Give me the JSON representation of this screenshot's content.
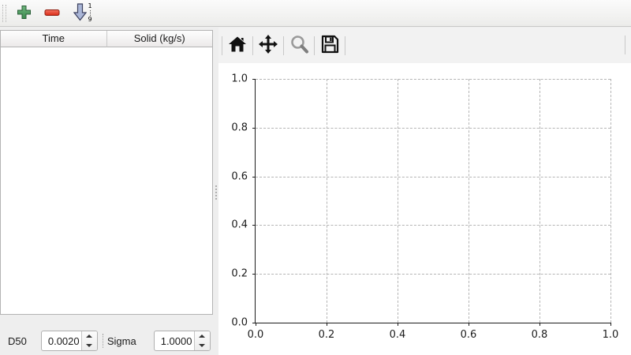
{
  "toolbar": {
    "add_tooltip": "add",
    "remove_tooltip": "remove",
    "sort_top_digit": "1",
    "sort_bottom_digit": "9"
  },
  "table": {
    "columns": [
      "Time",
      "Solid (kg/s)"
    ],
    "rows": []
  },
  "params": {
    "d50_label": "D50",
    "d50_value": "0.0020",
    "sigma_label": "Sigma",
    "sigma_value": "1.0000"
  },
  "plot_toolbar": {
    "buttons": [
      "home",
      "pan",
      "zoom",
      "save"
    ]
  },
  "colors": {
    "add_green": "#4a9c5c",
    "remove_red": "#e8402f",
    "sort_arrow_blue": "#aab6d7",
    "grid_gray": "#b4b4b4",
    "toolbar_bg": "#f2f2f2"
  },
  "chart_data": {
    "type": "line",
    "series": [],
    "title": "",
    "xlabel": "",
    "ylabel": "",
    "xlim": [
      0.0,
      1.0
    ],
    "ylim": [
      0.0,
      1.0
    ],
    "xticks": [
      0.0,
      0.2,
      0.4,
      0.6,
      0.8,
      1.0
    ],
    "yticks": [
      0.0,
      0.2,
      0.4,
      0.6,
      0.8,
      1.0
    ],
    "xtick_labels": [
      "0.0",
      "0.2",
      "0.4",
      "0.6",
      "0.8",
      "1.0"
    ],
    "ytick_labels": [
      "0.0",
      "0.2",
      "0.4",
      "0.6",
      "0.8",
      "1.0"
    ],
    "grid": true,
    "grid_style": "dashed",
    "legend": false
  }
}
